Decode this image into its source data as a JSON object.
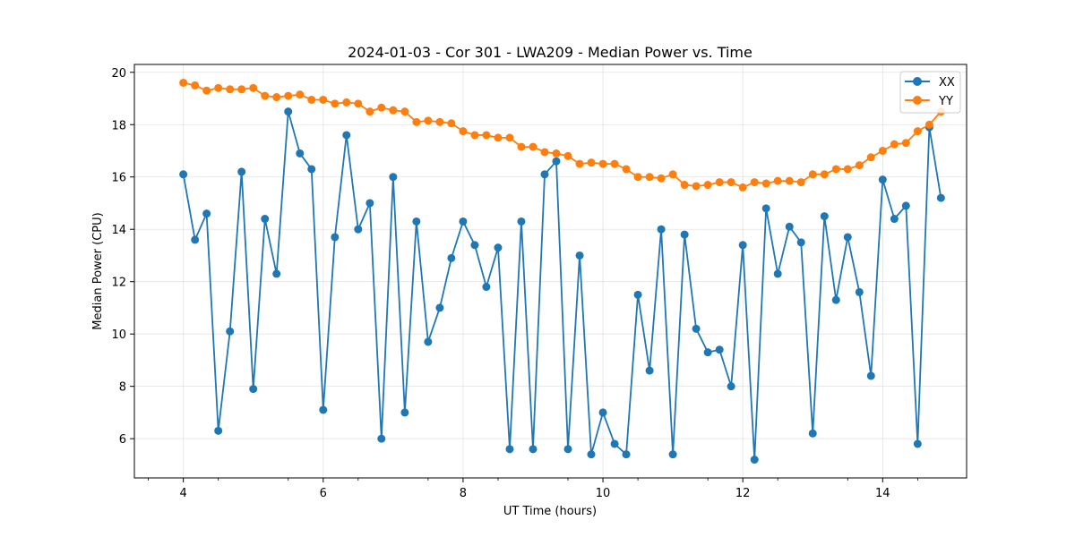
{
  "chart_data": {
    "type": "line",
    "title": "2024-01-03 - Cor 301 - LWA209 - Median Power vs. Time",
    "xlabel": "UT Time (hours)",
    "ylabel": "Median Power (CPU)",
    "xlim": [
      3.3,
      15.2
    ],
    "ylim": [
      4.5,
      20.3
    ],
    "xticks": [
      4,
      6,
      8,
      10,
      12,
      14
    ],
    "yticks": [
      6,
      8,
      10,
      12,
      14,
      16,
      18,
      20
    ],
    "grid": true,
    "legend_position": "top-right",
    "x": [
      4.0,
      4.167,
      4.333,
      4.5,
      4.667,
      4.833,
      5.0,
      5.167,
      5.333,
      5.5,
      5.667,
      5.833,
      6.0,
      6.167,
      6.333,
      6.5,
      6.667,
      6.833,
      7.0,
      7.167,
      7.333,
      7.5,
      7.667,
      7.833,
      8.0,
      8.167,
      8.333,
      8.5,
      8.667,
      8.833,
      9.0,
      9.167,
      9.333,
      9.5,
      9.667,
      9.833,
      10.0,
      10.167,
      10.333,
      10.5,
      10.667,
      10.833,
      11.0,
      11.167,
      11.333,
      11.5,
      11.667,
      11.833,
      12.0,
      12.167,
      12.333,
      12.5,
      12.667,
      12.833,
      13.0,
      13.167,
      13.333,
      13.5,
      13.667,
      13.833,
      14.0,
      14.167,
      14.333,
      14.5,
      14.667,
      14.833
    ],
    "series": [
      {
        "name": "XX",
        "color": "#1f77b4",
        "values": [
          16.1,
          13.6,
          14.6,
          6.3,
          10.1,
          16.2,
          7.9,
          14.4,
          12.3,
          18.5,
          16.9,
          16.3,
          7.1,
          13.7,
          17.6,
          14.0,
          15.0,
          6.0,
          16.0,
          7.0,
          14.3,
          9.7,
          11.0,
          12.9,
          14.3,
          13.4,
          11.8,
          13.3,
          5.6,
          14.3,
          5.6,
          16.1,
          16.6,
          5.6,
          13.0,
          5.4,
          7.0,
          5.8,
          5.4,
          11.5,
          8.6,
          14.0,
          5.4,
          13.8,
          10.2,
          9.3,
          9.4,
          8.0,
          13.4,
          5.2,
          14.8,
          12.3,
          14.1,
          13.5,
          6.2,
          14.5,
          11.3,
          13.7,
          11.6,
          8.4,
          15.9,
          14.4,
          14.9,
          5.8,
          17.9,
          15.2
        ]
      },
      {
        "name": "YY",
        "color": "#ff7f0e",
        "values": [
          19.6,
          19.5,
          19.3,
          19.4,
          19.35,
          19.35,
          19.4,
          19.1,
          19.05,
          19.1,
          19.15,
          18.95,
          18.95,
          18.8,
          18.85,
          18.8,
          18.5,
          18.65,
          18.55,
          18.5,
          18.1,
          18.15,
          18.1,
          18.05,
          17.75,
          17.6,
          17.6,
          17.5,
          17.5,
          17.15,
          17.15,
          16.95,
          16.9,
          16.8,
          16.5,
          16.55,
          16.5,
          16.5,
          16.3,
          16.0,
          16.0,
          15.95,
          16.1,
          15.7,
          15.65,
          15.7,
          15.8,
          15.8,
          15.6,
          15.8,
          15.75,
          15.85,
          15.85,
          15.8,
          16.1,
          16.1,
          16.3,
          16.3,
          16.45,
          16.75,
          17.0,
          17.25,
          17.3,
          17.75,
          18.0,
          18.5
        ]
      }
    ]
  }
}
